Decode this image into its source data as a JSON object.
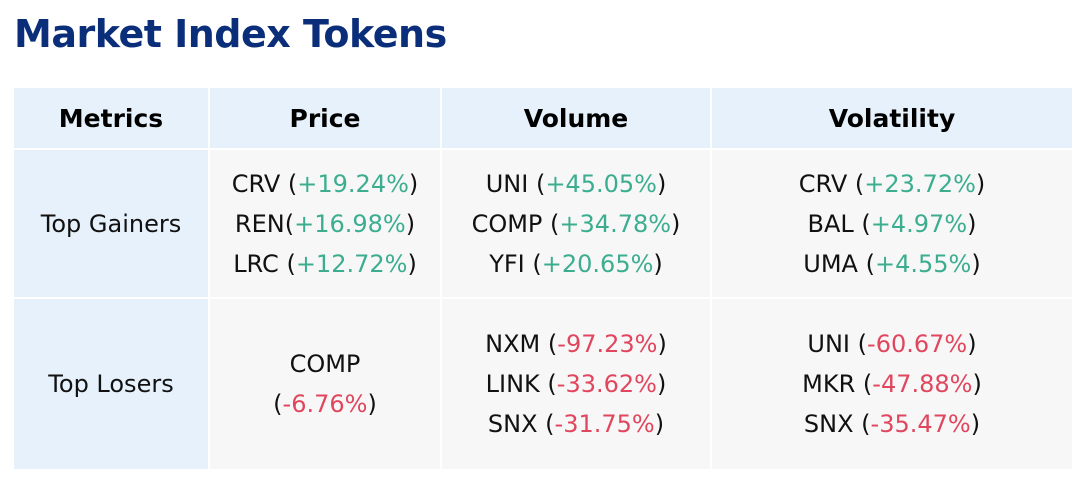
{
  "title": "Market Index Tokens",
  "colors": {
    "title": "#0b2e7a",
    "header_bg": "#e6f1fb",
    "positive": "#3cae8f",
    "negative": "#e0475e"
  },
  "table": {
    "headers": [
      "Metrics",
      "Price",
      "Volume",
      "Volatility"
    ],
    "rows": [
      {
        "label": "Top Gainers",
        "price": [
          {
            "token": "CRV",
            "sep": " ",
            "change": "+19.24%"
          },
          {
            "token": "REN",
            "sep": "",
            "change": "+16.98%"
          },
          {
            "token": "LRC",
            "sep": " ",
            "change": "+12.72%"
          }
        ],
        "volume": [
          {
            "token": "UNI",
            "sep": " ",
            "change": "+45.05%"
          },
          {
            "token": "COMP",
            "sep": " ",
            "change": "+34.78%"
          },
          {
            "token": "YFI",
            "sep": " ",
            "change": "+20.65%"
          }
        ],
        "volatility": [
          {
            "token": "CRV",
            "sep": " ",
            "change": "+23.72%"
          },
          {
            "token": "BAL",
            "sep": " ",
            "change": "+4.97%"
          },
          {
            "token": "UMA",
            "sep": " ",
            "change": "+4.55%"
          }
        ]
      },
      {
        "label": "Top Losers",
        "price_token": "COMP",
        "price_change": "-6.76%",
        "volume": [
          {
            "token": "NXM",
            "sep": " ",
            "change": "-97.23%"
          },
          {
            "token": "LINK",
            "sep": " ",
            "change": "-33.62%"
          },
          {
            "token": "SNX",
            "sep": " ",
            "change": "-31.75%"
          }
        ],
        "volatility": [
          {
            "token": "UNI",
            "sep": " ",
            "change": "-60.67%"
          },
          {
            "token": "MKR",
            "sep": " ",
            "change": "-47.88%"
          },
          {
            "token": "SNX",
            "sep": " ",
            "change": "-35.47%"
          }
        ]
      }
    ]
  }
}
